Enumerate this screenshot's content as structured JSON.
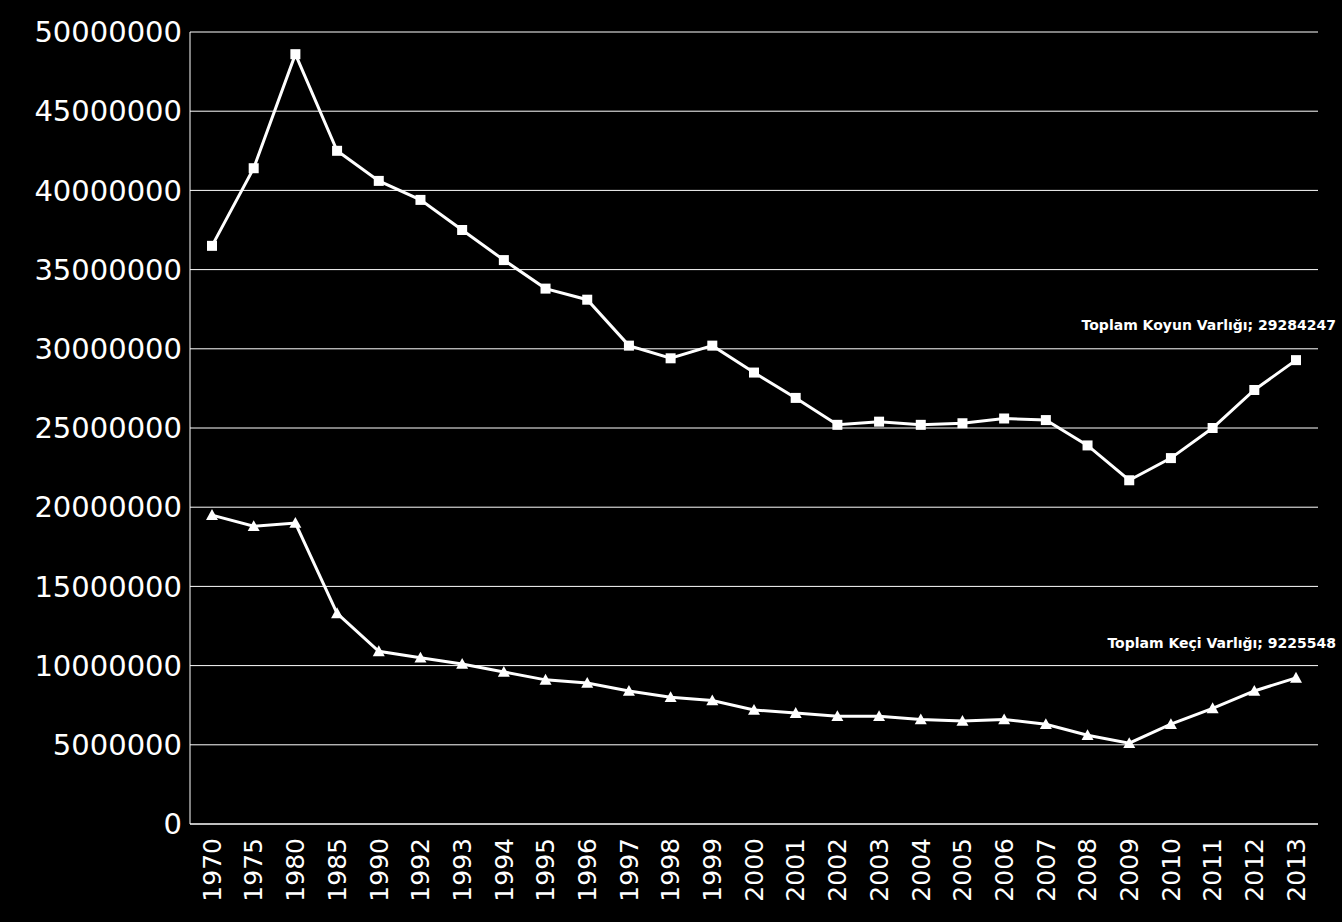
{
  "chart_data": {
    "type": "line",
    "categories": [
      "1970",
      "1975",
      "1980",
      "1985",
      "1990",
      "1992",
      "1993",
      "1994",
      "1995",
      "1996",
      "1997",
      "1998",
      "1999",
      "2000",
      "2001",
      "2002",
      "2003",
      "2004",
      "2005",
      "2006",
      "2007",
      "2008",
      "2009",
      "2010",
      "2011",
      "2012",
      "2013"
    ],
    "series": [
      {
        "color": "#ffffff",
        "marker": "square",
        "values": [
          36500000,
          41400000,
          48600000,
          42500000,
          40600000,
          39400000,
          37500000,
          35600000,
          33800000,
          33100000,
          30200000,
          29400000,
          30200000,
          28500000,
          26900000,
          25200000,
          25400000,
          25200000,
          25300000,
          25600000,
          25500000,
          23900000,
          21700000,
          23100000,
          25000000,
          27400000,
          29284247
        ]
      },
      {
        "color": "#ffffff",
        "marker": "triangle",
        "values": [
          19500000,
          18800000,
          19000000,
          13300000,
          10900000,
          10500000,
          10100000,
          9600000,
          9100000,
          8900000,
          8400000,
          8000000,
          7800000,
          7200000,
          7000000,
          6800000,
          6800000,
          6600000,
          6500000,
          6600000,
          6300000,
          5600000,
          5100000,
          6300000,
          7300000,
          8400000,
          9225548
        ]
      }
    ],
    "annotations": [
      {
        "text": "Toplam Koyun Varlığı; 29284247",
        "x": "2013",
        "y": 29284247
      },
      {
        "text": "Toplam Keçi Varlığı; 9225548",
        "x": "2013",
        "y": 9225548
      }
    ],
    "ylim": [
      0,
      50000000
    ],
    "yticks": [
      0,
      5000000,
      10000000,
      15000000,
      20000000,
      25000000,
      30000000,
      35000000,
      40000000,
      45000000,
      50000000
    ],
    "grid": true
  }
}
